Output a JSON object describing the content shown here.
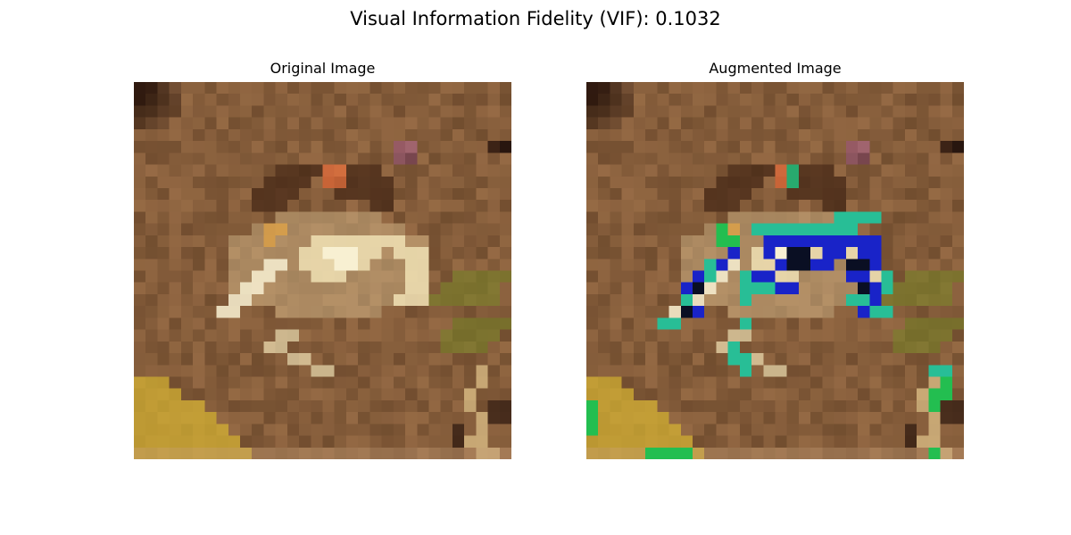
{
  "figure": {
    "suptitle": "Visual Information Fidelity (VIF): 0.1032"
  },
  "panels": [
    {
      "title": "Original Image"
    },
    {
      "title": "Augmented Image"
    }
  ]
}
